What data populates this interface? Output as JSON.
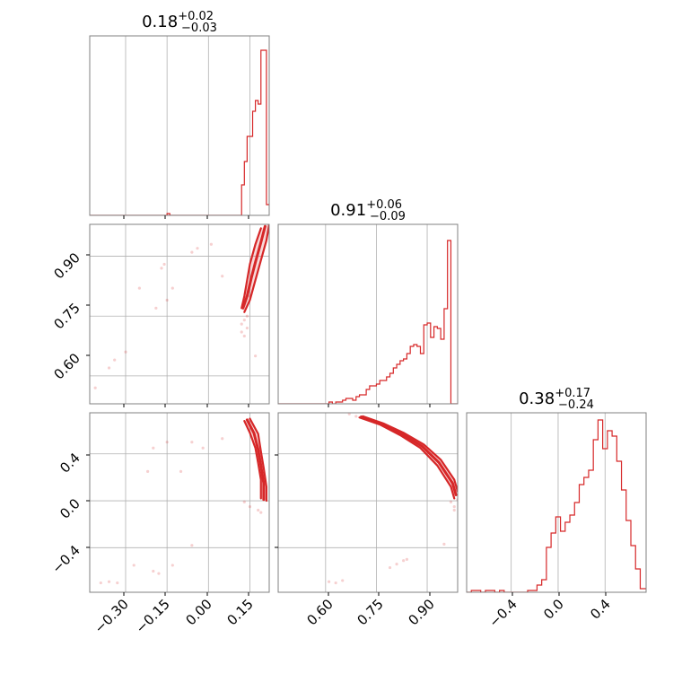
{
  "colors": {
    "accent": "#d62728",
    "grid": "#b0b0b0",
    "frame": "#808080",
    "background": "#ffffff"
  },
  "chart_data": [
    {
      "type": "histogram",
      "panel": "p00",
      "title": {
        "value": "0.18",
        "plus": "+0.02",
        "minus": "−0.03"
      },
      "xlim": [
        -0.43,
        0.22
      ],
      "bin_edges": [
        -0.43,
        -0.15,
        -0.14,
        0.11,
        0.12,
        0.13,
        0.14,
        0.15,
        0.16,
        0.17,
        0.18,
        0.19,
        0.2,
        0.21,
        0.22
      ],
      "values": [
        0.0,
        0.01,
        0.0,
        0.0,
        0.17,
        0.3,
        0.44,
        0.44,
        0.58,
        0.64,
        0.62,
        0.92,
        0.92,
        0.06
      ],
      "ylim": [
        0,
        1
      ],
      "xgrid": [
        -0.3,
        -0.15,
        0.0,
        0.15
      ]
    },
    {
      "type": "histogram",
      "panel": "p11",
      "title": {
        "value": "0.91",
        "plus": "+0.06",
        "minus": "−0.09"
      },
      "xlim": [
        0.46,
        0.99
      ],
      "bin_edges": [
        0.46,
        0.61,
        0.62,
        0.63,
        0.65,
        0.66,
        0.67,
        0.68,
        0.69,
        0.7,
        0.71,
        0.72,
        0.73,
        0.74,
        0.75,
        0.76,
        0.77,
        0.78,
        0.79,
        0.8,
        0.81,
        0.82,
        0.83,
        0.84,
        0.85,
        0.86,
        0.87,
        0.88,
        0.89,
        0.9,
        0.91,
        0.92,
        0.93,
        0.94,
        0.95,
        0.96,
        0.97,
        0.98,
        0.99
      ],
      "values": [
        0.0,
        0.01,
        0.0,
        0.01,
        0.02,
        0.03,
        0.03,
        0.02,
        0.04,
        0.05,
        0.05,
        0.08,
        0.1,
        0.1,
        0.11,
        0.13,
        0.13,
        0.15,
        0.17,
        0.2,
        0.22,
        0.24,
        0.25,
        0.28,
        0.32,
        0.33,
        0.32,
        0.28,
        0.44,
        0.45,
        0.37,
        0.43,
        0.42,
        0.36,
        0.53,
        0.91,
        0.0,
        0.0
      ],
      "ylim": [
        0,
        1
      ],
      "xgrid": [
        0.6,
        0.75,
        0.9
      ]
    },
    {
      "type": "histogram",
      "panel": "p22",
      "title": {
        "value": "0.38",
        "plus": "+0.17",
        "minus": "−0.24"
      },
      "xlim": [
        -0.78,
        0.75
      ],
      "bin_edges": [
        -0.78,
        -0.74,
        -0.7,
        -0.66,
        -0.62,
        -0.58,
        -0.54,
        -0.5,
        -0.46,
        -0.42,
        -0.38,
        -0.34,
        -0.3,
        -0.26,
        -0.22,
        -0.18,
        -0.14,
        -0.1,
        -0.06,
        -0.02,
        0.02,
        0.06,
        0.1,
        0.14,
        0.18,
        0.22,
        0.26,
        0.3,
        0.34,
        0.38,
        0.42,
        0.46,
        0.5,
        0.54,
        0.58,
        0.62,
        0.66,
        0.7,
        0.75
      ],
      "values": [
        0.0,
        0.01,
        0.01,
        0.0,
        0.01,
        0.01,
        0.0,
        0.01,
        0.0,
        0.0,
        0.0,
        0.0,
        0.0,
        0.01,
        0.01,
        0.04,
        0.07,
        0.25,
        0.33,
        0.42,
        0.34,
        0.39,
        0.43,
        0.5,
        0.6,
        0.64,
        0.68,
        0.85,
        0.96,
        0.8,
        0.9,
        0.87,
        0.73,
        0.57,
        0.4,
        0.26,
        0.13,
        0.02
      ],
      "ylim": [
        0,
        1
      ],
      "xgrid": [
        -0.4,
        0.0,
        0.4
      ]
    },
    {
      "type": "scatter_contour",
      "panel": "p10",
      "xlim": [
        -0.43,
        0.22
      ],
      "ylim": [
        0.53,
        0.98
      ],
      "xgrid": [
        -0.3,
        -0.15,
        0.0,
        0.15
      ],
      "ygrid": [
        0.6,
        0.75,
        0.9
      ],
      "contour_band": {
        "left": [
          [
            0.12,
            0.77
          ],
          [
            0.13,
            0.8
          ],
          [
            0.14,
            0.84
          ],
          [
            0.15,
            0.88
          ],
          [
            0.17,
            0.93
          ],
          [
            0.19,
            0.97
          ]
        ],
        "right": [
          [
            0.13,
            0.76
          ],
          [
            0.15,
            0.79
          ],
          [
            0.17,
            0.84
          ],
          [
            0.19,
            0.89
          ],
          [
            0.21,
            0.94
          ],
          [
            0.22,
            0.98
          ]
        ],
        "mid": [
          [
            0.125,
            0.77
          ],
          [
            0.14,
            0.8
          ],
          [
            0.155,
            0.845
          ],
          [
            0.17,
            0.885
          ],
          [
            0.19,
            0.935
          ],
          [
            0.205,
            0.975
          ]
        ]
      },
      "points": [
        [
          -0.41,
          0.57
        ],
        [
          -0.36,
          0.62
        ],
        [
          -0.34,
          0.64
        ],
        [
          -0.3,
          0.66
        ],
        [
          -0.25,
          0.82
        ],
        [
          -0.19,
          0.77
        ],
        [
          -0.17,
          0.87
        ],
        [
          -0.16,
          0.88
        ],
        [
          -0.15,
          0.79
        ],
        [
          -0.13,
          0.82
        ],
        [
          -0.06,
          0.91
        ],
        [
          -0.04,
          0.92
        ],
        [
          0.01,
          0.93
        ],
        [
          0.05,
          0.85
        ],
        [
          0.12,
          0.73
        ],
        [
          0.13,
          0.74
        ],
        [
          0.12,
          0.71
        ],
        [
          0.14,
          0.75
        ],
        [
          0.17,
          0.65
        ],
        [
          0.13,
          0.7
        ],
        [
          0.14,
          0.72
        ],
        [
          0.15,
          0.8
        ]
      ]
    },
    {
      "type": "scatter_contour",
      "panel": "p20",
      "xlim": [
        -0.43,
        0.22
      ],
      "ylim": [
        -0.78,
        0.75
      ],
      "xgrid": [
        -0.3,
        -0.15,
        0.0,
        0.15
      ],
      "ygrid": [
        -0.4,
        0.0,
        0.4
      ],
      "contour_band": {
        "left": [
          [
            0.13,
            0.68
          ],
          [
            0.15,
            0.58
          ],
          [
            0.17,
            0.45
          ],
          [
            0.18,
            0.32
          ],
          [
            0.19,
            0.18
          ],
          [
            0.19,
            0.02
          ]
        ],
        "right": [
          [
            0.15,
            0.7
          ],
          [
            0.18,
            0.57
          ],
          [
            0.19,
            0.42
          ],
          [
            0.2,
            0.28
          ],
          [
            0.21,
            0.12
          ],
          [
            0.21,
            0.0
          ]
        ],
        "mid": [
          [
            0.14,
            0.69
          ],
          [
            0.165,
            0.575
          ],
          [
            0.18,
            0.435
          ],
          [
            0.19,
            0.3
          ],
          [
            0.2,
            0.15
          ],
          [
            0.2,
            0.01
          ]
        ]
      },
      "points": [
        [
          -0.39,
          -0.7
        ],
        [
          -0.36,
          -0.69
        ],
        [
          -0.33,
          -0.7
        ],
        [
          -0.27,
          -0.55
        ],
        [
          -0.2,
          -0.6
        ],
        [
          -0.18,
          -0.62
        ],
        [
          -0.13,
          -0.55
        ],
        [
          -0.06,
          -0.38
        ],
        [
          -0.2,
          0.45
        ],
        [
          -0.22,
          0.25
        ],
        [
          -0.1,
          0.25
        ],
        [
          -0.06,
          0.5
        ],
        [
          -0.02,
          0.45
        ],
        [
          0.05,
          0.53
        ],
        [
          -0.15,
          0.5
        ],
        [
          0.13,
          -0.01
        ],
        [
          0.15,
          -0.05
        ],
        [
          0.18,
          -0.08
        ],
        [
          0.19,
          -0.1
        ]
      ]
    },
    {
      "type": "scatter_contour",
      "panel": "p21",
      "xlim": [
        0.46,
        0.99
      ],
      "ylim": [
        -0.78,
        0.75
      ],
      "xgrid": [
        0.6,
        0.75,
        0.9
      ],
      "ygrid": [
        -0.4,
        0.0,
        0.4
      ],
      "contour_band": {
        "left": [
          [
            0.7,
            0.71
          ],
          [
            0.76,
            0.65
          ],
          [
            0.82,
            0.56
          ],
          [
            0.88,
            0.45
          ],
          [
            0.93,
            0.3
          ],
          [
            0.97,
            0.12
          ],
          [
            0.98,
            0.02
          ]
        ],
        "right": [
          [
            0.71,
            0.72
          ],
          [
            0.77,
            0.66
          ],
          [
            0.83,
            0.58
          ],
          [
            0.89,
            0.48
          ],
          [
            0.94,
            0.35
          ],
          [
            0.98,
            0.18
          ],
          [
            0.99,
            0.08
          ]
        ],
        "mid": [
          [
            0.705,
            0.715
          ],
          [
            0.765,
            0.655
          ],
          [
            0.825,
            0.57
          ],
          [
            0.885,
            0.465
          ],
          [
            0.935,
            0.325
          ],
          [
            0.975,
            0.15
          ],
          [
            0.985,
            0.05
          ]
        ]
      },
      "points": [
        [
          0.67,
          0.74
        ],
        [
          0.69,
          0.72
        ],
        [
          0.72,
          0.7
        ],
        [
          0.63,
          -0.7
        ],
        [
          0.61,
          -0.69
        ],
        [
          0.65,
          -0.68
        ],
        [
          0.79,
          -0.57
        ],
        [
          0.81,
          -0.54
        ],
        [
          0.83,
          -0.51
        ],
        [
          0.84,
          -0.5
        ],
        [
          0.95,
          -0.37
        ],
        [
          0.98,
          -0.08
        ],
        [
          0.98,
          -0.05
        ],
        [
          0.97,
          -0.01
        ],
        [
          0.99,
          0.01
        ]
      ]
    }
  ],
  "tick_labels": {
    "row1_y": [
      "0.90",
      "0.75",
      "0.60"
    ],
    "row2_y": [
      "0.4",
      "0.0",
      "−0.4"
    ],
    "col0_x": [
      "−0.30",
      "−0.15",
      "0.00",
      "0.15"
    ],
    "col1_x": [
      "0.60",
      "0.75",
      "0.90"
    ],
    "col2_x": [
      "−0.4",
      "0.0",
      "0.4"
    ]
  }
}
